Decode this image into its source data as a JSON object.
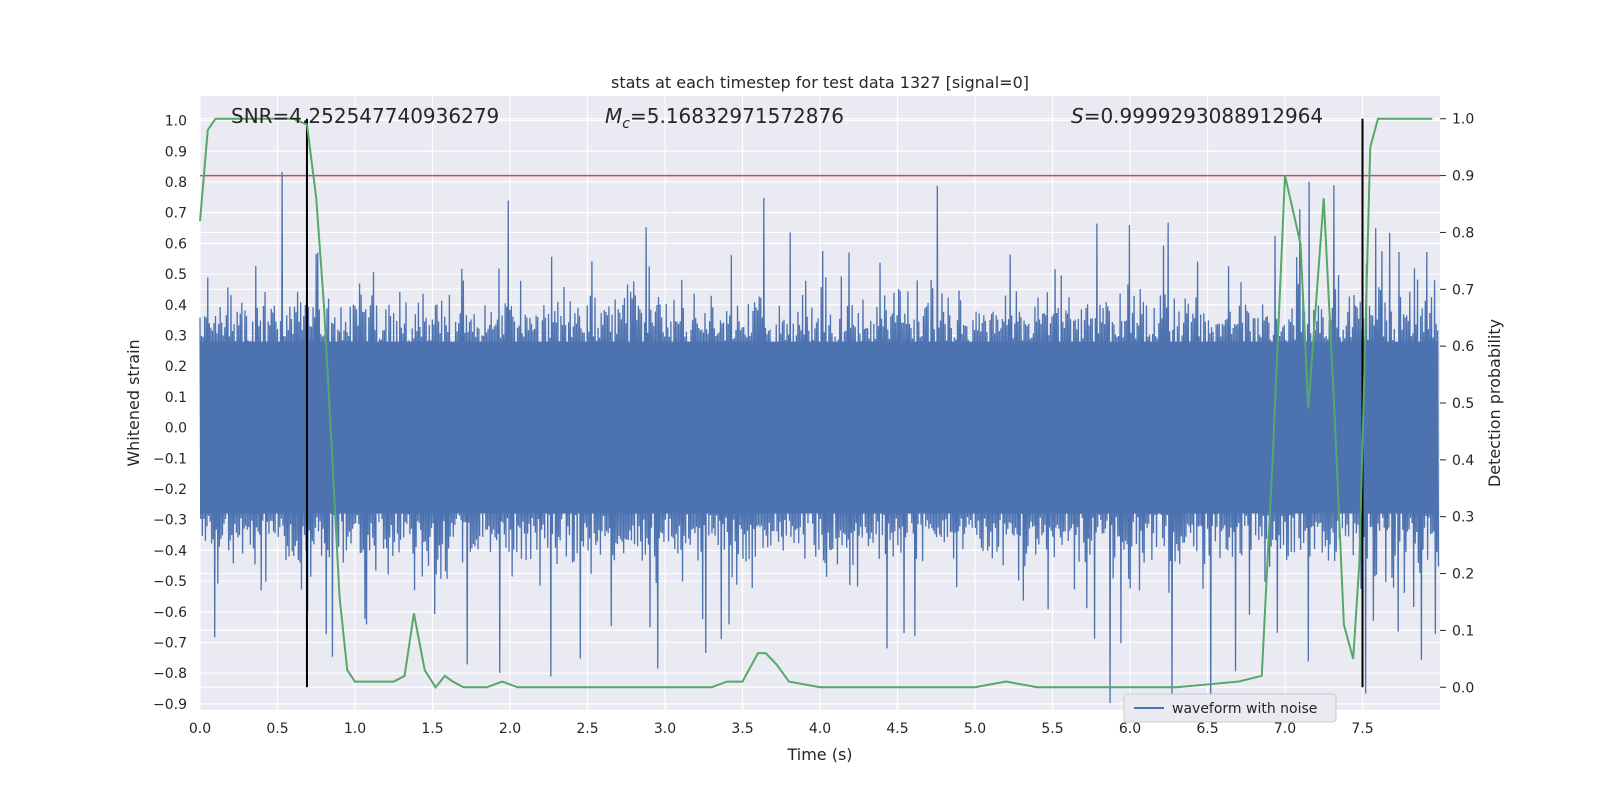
{
  "chart_data": {
    "type": "line",
    "title": "stats at each timestep for test data 1327 [signal=0]",
    "xlabel": "Time (s)",
    "ylabel": "Whitened strain",
    "y2label": "Detection probability",
    "xlim": [
      0.0,
      8.0
    ],
    "ylim": [
      -0.92,
      1.08
    ],
    "y2lim": [
      -0.04,
      1.04
    ],
    "xticks": [
      "0.0",
      "0.5",
      "1.0",
      "1.5",
      "2.0",
      "2.5",
      "3.0",
      "3.5",
      "4.0",
      "4.5",
      "5.0",
      "5.5",
      "6.0",
      "6.5",
      "7.0",
      "7.5"
    ],
    "yticks": [
      "1.0",
      "0.9",
      "0.8",
      "0.7",
      "0.6",
      "0.5",
      "0.4",
      "0.3",
      "0.2",
      "0.1",
      "0.0",
      "−0.1",
      "−0.2",
      "−0.3",
      "−0.4",
      "−0.5",
      "−0.6",
      "−0.7",
      "−0.8",
      "−0.9"
    ],
    "y2ticks": [
      "1.0",
      "0.9",
      "0.8",
      "0.7",
      "0.6",
      "0.5",
      "0.4",
      "0.3",
      "0.2",
      "0.1",
      "0.0"
    ],
    "grid": true,
    "legend": {
      "position": "lower-right",
      "entries": [
        "waveform with noise"
      ]
    },
    "annotations": {
      "snr": "SNR=4.252547740936279",
      "mc_symbol": "M",
      "mc_sub": "c",
      "mc_value": "=5.16832971572876",
      "s_symbol": "S",
      "s_value": "=0.9999293088912964"
    },
    "threshold": {
      "value": 0.9,
      "axis": "y2"
    },
    "vlines": [
      0.69,
      7.5
    ],
    "waveform": {
      "name": "waveform with noise",
      "color": "#4c72b0",
      "x_start": 0.0,
      "x_end": 7.99,
      "n_samples": 1600,
      "core_amplitude": 0.28,
      "peak_range": [
        -0.92,
        1.0
      ]
    },
    "probability": {
      "color": "#55a868",
      "x": [
        0.0,
        0.05,
        0.1,
        0.2,
        0.3,
        0.4,
        0.5,
        0.6,
        0.69,
        0.75,
        0.8,
        0.85,
        0.9,
        0.95,
        1.0,
        1.1,
        1.25,
        1.32,
        1.38,
        1.45,
        1.52,
        1.58,
        1.63,
        1.7,
        1.75,
        1.8,
        1.85,
        1.95,
        2.05,
        2.2,
        2.5,
        2.7,
        3.0,
        3.3,
        3.4,
        3.5,
        3.6,
        3.65,
        3.72,
        3.8,
        4.0,
        4.5,
        5.0,
        5.2,
        5.4,
        5.7,
        6.0,
        6.3,
        6.7,
        6.85,
        6.92,
        7.0,
        7.1,
        7.15,
        7.25,
        7.32,
        7.38,
        7.44,
        7.48,
        7.55,
        7.6,
        7.65,
        7.7,
        7.8,
        7.95
      ],
      "y": [
        0.82,
        0.98,
        1.0,
        1.0,
        1.0,
        1.0,
        1.0,
        1.0,
        0.99,
        0.86,
        0.67,
        0.42,
        0.16,
        0.03,
        0.01,
        0.01,
        0.01,
        0.02,
        0.13,
        0.03,
        0.0,
        0.02,
        0.01,
        0.0,
        0.0,
        0.0,
        0.0,
        0.01,
        0.0,
        0.0,
        0.0,
        0.0,
        0.0,
        0.0,
        0.01,
        0.01,
        0.06,
        0.06,
        0.04,
        0.01,
        0.0,
        0.0,
        0.0,
        0.01,
        0.0,
        0.0,
        0.0,
        0.0,
        0.01,
        0.02,
        0.4,
        0.9,
        0.78,
        0.49,
        0.86,
        0.48,
        0.11,
        0.05,
        0.22,
        0.95,
        1.0,
        1.0,
        1.0,
        1.0,
        1.0
      ]
    },
    "threshold_color": "#c44e52",
    "background_color": "#eaeaf2"
  }
}
